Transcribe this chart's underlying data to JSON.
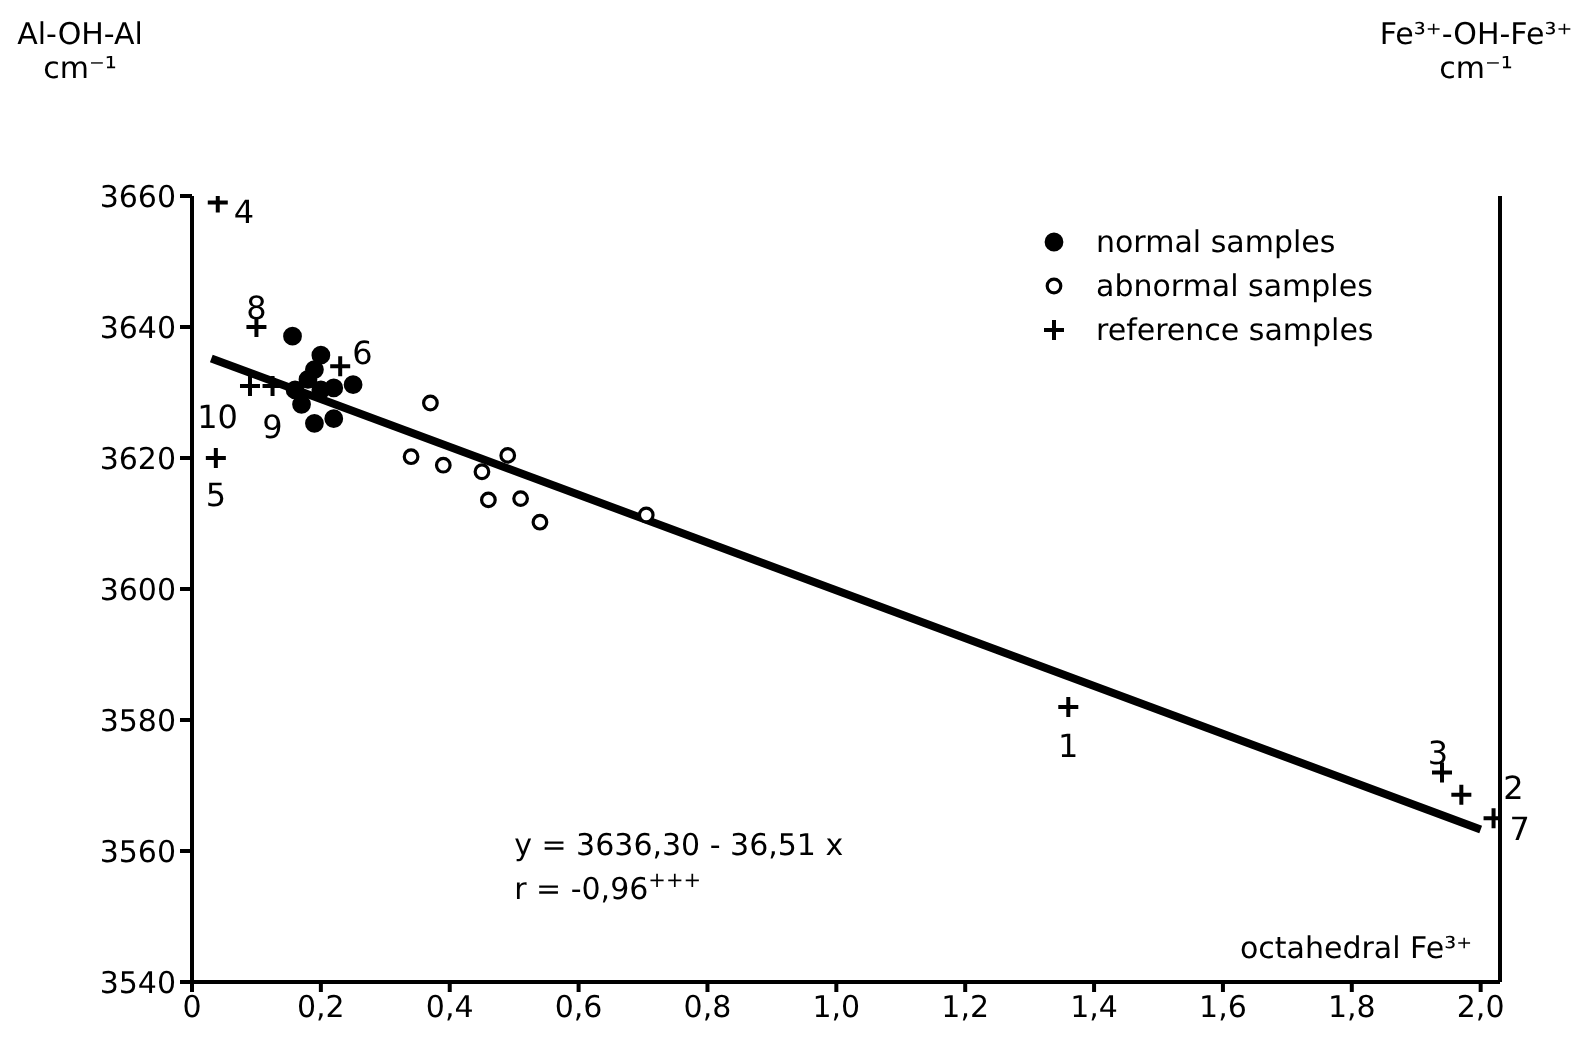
{
  "chart_data": {
    "type": "scatter",
    "ylabel": "Al-OH-Al\ncm⁻¹",
    "y2label": "Fe³⁺-OH-Fe³⁺\ncm⁻¹",
    "xlabel": "octahedral Fe³⁺",
    "xlim": [
      0,
      2.03
    ],
    "xticks": [
      0,
      {
        "value": 0.2,
        "label": "0,2"
      },
      {
        "value": 0.4,
        "label": "0,4"
      },
      {
        "value": 0.6,
        "label": "0,6"
      },
      {
        "value": 0.8,
        "label": "0,8"
      },
      {
        "value": 1.0,
        "label": "1,0"
      },
      {
        "value": 1.2,
        "label": "1,2"
      },
      {
        "value": 1.4,
        "label": "1,4"
      },
      {
        "value": 1.6,
        "label": "1,6"
      },
      {
        "value": 1.8,
        "label": "1,8"
      },
      {
        "value": 2.0,
        "label": "2,0"
      }
    ],
    "ylim": [
      3540,
      3660
    ],
    "yticks": [
      3540,
      3560,
      3580,
      3600,
      3620,
      3640,
      3660
    ],
    "grid": false,
    "legend": "top right",
    "series": [
      {
        "name": "normal samples",
        "color": "#000000",
        "marker": "circle",
        "x": [
          0.156,
          0.2,
          0.19,
          0.18,
          0.16,
          0.17,
          0.19,
          0.22,
          0.22,
          0.25,
          0.2
        ],
        "values": [
          3638.6,
          3635.7,
          3633.5,
          3632,
          3630.4,
          3628.2,
          3625.3,
          3626,
          3630.7,
          3631.2,
          3630.4
        ]
      },
      {
        "name": "abnormal samples",
        "color": "#ffffff",
        "marker": "circle",
        "x": [
          0.37,
          0.34,
          0.39,
          0.45,
          0.49,
          0.46,
          0.51,
          0.54,
          0.705
        ],
        "values": [
          3628.4,
          3620.2,
          3618.9,
          3617.9,
          3620.4,
          3613.6,
          3613.8,
          3610.2,
          3611.3
        ]
      },
      {
        "name": "reference samples",
        "color": "#000000",
        "marker": "cross",
        "x": [
          0.04,
          0.1,
          0.09,
          0.125,
          0.037,
          0.23,
          1.36,
          1.94,
          1.97,
          2.02
        ],
        "values": [
          3659,
          3640,
          3631,
          3631,
          3620,
          3634,
          3582,
          3572,
          3568.6,
          3565
        ]
      },
      {
        "type": "line",
        "color": "#000000",
        "marker": "none",
        "x": [
          0.03,
          2.0
        ],
        "values": [
          3635.2,
          3563.3
        ]
      }
    ],
    "annotations": [
      {
        "text": "4",
        "x": 0.04,
        "y": 3659
      },
      {
        "text": "8",
        "x": 0.1,
        "y": 3640
      },
      {
        "text": "10",
        "x": 0.09,
        "y": 3631
      },
      {
        "text": "9",
        "x": 0.125,
        "y": 3631
      },
      {
        "text": "5",
        "x": 0.037,
        "y": 3620
      },
      {
        "text": "6",
        "x": 0.23,
        "y": 3634
      },
      {
        "text": "1",
        "x": 1.36,
        "y": 3582
      },
      {
        "text": "3",
        "x": 1.94,
        "y": 3572
      },
      {
        "text": "2",
        "x": 1.97,
        "y": 3568.6
      },
      {
        "text": "7",
        "x": 2.02,
        "y": 3565
      },
      "y = 3636,30 - 36,51 x",
      "r = -0,96$^{+++}$"
    ]
  }
}
